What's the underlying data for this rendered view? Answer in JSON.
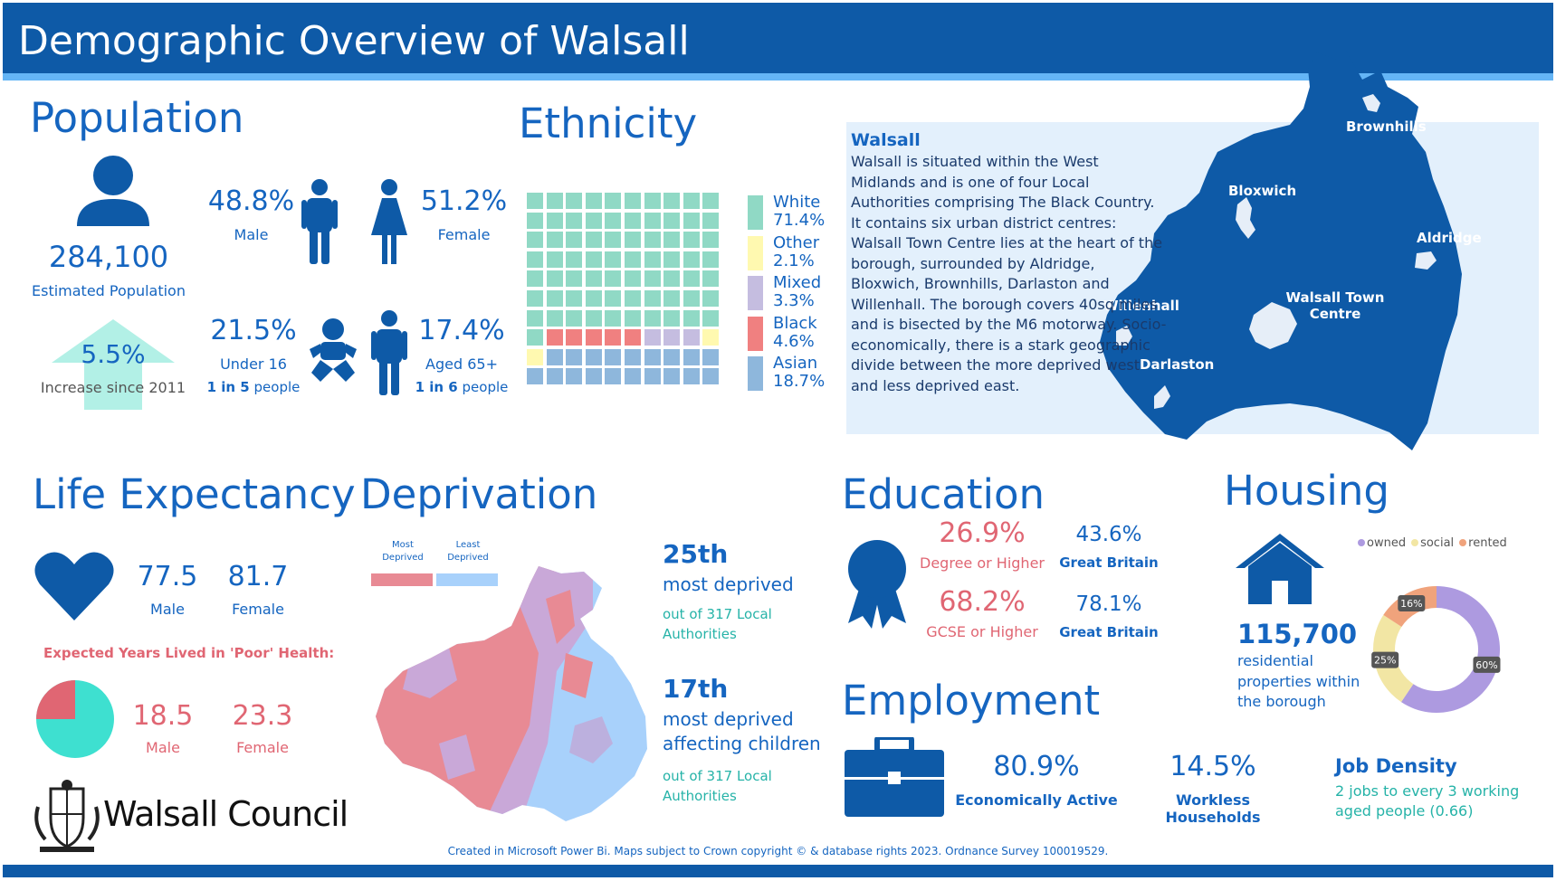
{
  "header": {
    "title": "Demographic Overview of Walsall"
  },
  "population": {
    "heading": "Population",
    "total": "284,100",
    "total_label": "Estimated Population",
    "increase": "5.5%",
    "increase_label": "Increase since 2011",
    "male_pct": "48.8%",
    "male_label": "Male",
    "female_pct": "51.2%",
    "female_label": "Female",
    "under16_pct": "21.5%",
    "under16_label": "Under 16",
    "under16_ratio": "1 in 5",
    "under16_people": "people",
    "aged65_pct": "17.4%",
    "aged65_label": "Aged 65+",
    "aged65_ratio": "1 in 6",
    "aged65_people": "people"
  },
  "ethnicity": {
    "heading": "Ethnicity",
    "groups": [
      {
        "name": "White",
        "value": "71.4%",
        "color": "#90d9c5"
      },
      {
        "name": "Other",
        "value": "2.1%",
        "color": "#fff9b0"
      },
      {
        "name": "Mixed",
        "value": "3.3%",
        "color": "#c5bde0"
      },
      {
        "name": "Black",
        "value": "4.6%",
        "color": "#f08080"
      },
      {
        "name": "Asian",
        "value": "18.7%",
        "color": "#8eb7dc"
      }
    ]
  },
  "walsall": {
    "title": "Walsall",
    "description": "Walsall is situated within the West Midlands and is one of four Local Authorities comprising The Black Country. It contains six urban district centres: Walsall Town Centre lies at the heart of the borough, surrounded by Aldridge, Bloxwich, Brownhills, Darlaston and Willenhall. The borough covers 40sq miles and is bisected by the M6 motorway. Socio-economically, there is a stark geographic divide between the more deprived west and less deprived east.",
    "places": {
      "brownhills": "Brownhills",
      "bloxwich": "Bloxwich",
      "aldridge": "Aldridge",
      "willenhall": "Willenhall",
      "walsall_town": "Walsall Town",
      "centre": "Centre",
      "darlaston": "Darlaston"
    }
  },
  "life_expectancy": {
    "heading": "Life Expectancy",
    "male": "77.5",
    "male_label": "Male",
    "female": "81.7",
    "female_label": "Female",
    "poor_health_label": "Expected Years Lived in 'Poor' Health:",
    "poor_male": "18.5",
    "poor_male_label": "Male",
    "poor_female": "23.3",
    "poor_female_label": "Female"
  },
  "deprivation": {
    "heading": "Deprivation",
    "legend_most": "Most Deprived",
    "legend_least": "Least Deprived",
    "rank1": "25th",
    "rank1_label": "most deprived",
    "rank1_note": "out of 317 Local Authorities",
    "rank2": "17th",
    "rank2_label1": "most deprived",
    "rank2_label2": "affecting children",
    "rank2_note": "out of 317 Local Authorities"
  },
  "education": {
    "heading": "Education",
    "degree": "26.9%",
    "degree_label": "Degree or Higher",
    "degree_gb": "43.6%",
    "degree_gb_label": "Great Britain",
    "gcse": "68.2%",
    "gcse_label": "GCSE or Higher",
    "gcse_gb": "78.1%",
    "gcse_gb_label": "Great Britain"
  },
  "employment": {
    "heading": "Employment",
    "active": "80.9%",
    "active_label": "Economically Active",
    "workless": "14.5%",
    "workless_label": "Workless Households",
    "job_density_title": "Job Density",
    "job_density_text": "2 jobs to every 3 working aged people (0.66)"
  },
  "housing": {
    "heading": "Housing",
    "count": "115,700",
    "count_label": "residential properties within the borough",
    "legend": [
      {
        "name": "owned",
        "color": "#ad9ae0"
      },
      {
        "name": "social",
        "color": "#f2e6a4"
      },
      {
        "name": "rented",
        "color": "#f0a37c"
      }
    ]
  },
  "chart_data": {
    "type": "pie",
    "categories": [
      "owned",
      "social",
      "rented"
    ],
    "values": [
      60,
      25,
      16
    ],
    "data_labels": [
      "60%",
      "25%",
      "16%"
    ]
  },
  "council": {
    "name": "Walsall Council"
  },
  "footer": {
    "note": "Created in Microsoft Power Bi. Maps subject to Crown copyright © & database rights 2023. Ordnance Survey 100019529."
  }
}
